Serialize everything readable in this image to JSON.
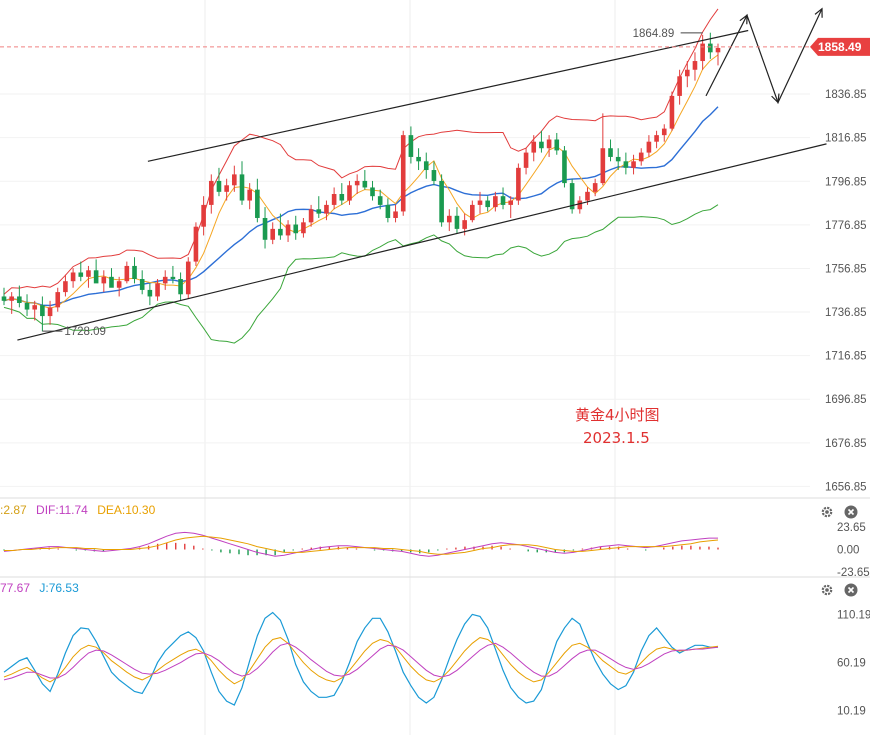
{
  "chart_data": [
    {
      "type": "candlestick",
      "title": "黄金4小时图",
      "subtitle": "2023.1.5",
      "y_ticks": [
        1836.85,
        1816.85,
        1796.85,
        1776.85,
        1756.85,
        1736.85,
        1716.85,
        1696.85,
        1676.85,
        1656.85
      ],
      "ylim": [
        1652,
        1880
      ],
      "current_price": "1858.49",
      "high_marker": "1864.89",
      "low_marker": "1728.09",
      "candles": [
        [
          1744,
          1748,
          1740,
          1742
        ],
        [
          1742,
          1746,
          1736,
          1744
        ],
        [
          1744,
          1749,
          1739,
          1741
        ],
        [
          1741,
          1745,
          1735,
          1738
        ],
        [
          1738,
          1742,
          1733,
          1740
        ],
        [
          1740,
          1744,
          1728,
          1735
        ],
        [
          1735,
          1742,
          1731,
          1739
        ],
        [
          1739,
          1748,
          1737,
          1746
        ],
        [
          1746,
          1754,
          1744,
          1751
        ],
        [
          1751,
          1757,
          1748,
          1755
        ],
        [
          1755,
          1760,
          1751,
          1753
        ],
        [
          1753,
          1758,
          1748,
          1756
        ],
        [
          1756,
          1761,
          1752,
          1750
        ],
        [
          1750,
          1756,
          1746,
          1753
        ],
        [
          1753,
          1757,
          1749,
          1748
        ],
        [
          1748,
          1753,
          1744,
          1751
        ],
        [
          1751,
          1760,
          1750,
          1758
        ],
        [
          1758,
          1762,
          1750,
          1752
        ],
        [
          1752,
          1756,
          1745,
          1747
        ],
        [
          1747,
          1750,
          1740,
          1744
        ],
        [
          1744,
          1752,
          1742,
          1750
        ],
        [
          1750,
          1756,
          1747,
          1753
        ],
        [
          1753,
          1758,
          1750,
          1752
        ],
        [
          1752,
          1755,
          1742,
          1745
        ],
        [
          1745,
          1762,
          1743,
          1760
        ],
        [
          1760,
          1778,
          1758,
          1776
        ],
        [
          1776,
          1790,
          1772,
          1786
        ],
        [
          1786,
          1800,
          1782,
          1797
        ],
        [
          1797,
          1803,
          1790,
          1792
        ],
        [
          1792,
          1798,
          1788,
          1795
        ],
        [
          1795,
          1804,
          1792,
          1800
        ],
        [
          1800,
          1806,
          1786,
          1788
        ],
        [
          1788,
          1796,
          1784,
          1793
        ],
        [
          1793,
          1798,
          1778,
          1780
        ],
        [
          1780,
          1785,
          1766,
          1770
        ],
        [
          1770,
          1778,
          1768,
          1775
        ],
        [
          1775,
          1782,
          1770,
          1772
        ],
        [
          1772,
          1779,
          1769,
          1777
        ],
        [
          1777,
          1781,
          1770,
          1773
        ],
        [
          1773,
          1780,
          1771,
          1778
        ],
        [
          1778,
          1786,
          1776,
          1784
        ],
        [
          1784,
          1790,
          1780,
          1782
        ],
        [
          1782,
          1788,
          1779,
          1786
        ],
        [
          1786,
          1794,
          1784,
          1791
        ],
        [
          1791,
          1796,
          1786,
          1788
        ],
        [
          1788,
          1797,
          1786,
          1795
        ],
        [
          1795,
          1800,
          1791,
          1797
        ],
        [
          1797,
          1802,
          1793,
          1794
        ],
        [
          1794,
          1797,
          1788,
          1790
        ],
        [
          1790,
          1793,
          1784,
          1786
        ],
        [
          1786,
          1789,
          1778,
          1780
        ],
        [
          1780,
          1786,
          1778,
          1783
        ],
        [
          1783,
          1820,
          1781,
          1818
        ],
        [
          1818,
          1822,
          1805,
          1808
        ],
        [
          1808,
          1812,
          1802,
          1806
        ],
        [
          1806,
          1810,
          1798,
          1802
        ],
        [
          1802,
          1806,
          1795,
          1797
        ],
        [
          1797,
          1800,
          1776,
          1778
        ],
        [
          1778,
          1784,
          1774,
          1781
        ],
        [
          1781,
          1785,
          1773,
          1775
        ],
        [
          1775,
          1782,
          1772,
          1779
        ],
        [
          1779,
          1788,
          1778,
          1786
        ],
        [
          1786,
          1792,
          1782,
          1788
        ],
        [
          1788,
          1790,
          1783,
          1785
        ],
        [
          1785,
          1792,
          1783,
          1790
        ],
        [
          1790,
          1794,
          1784,
          1786
        ],
        [
          1786,
          1790,
          1780,
          1788
        ],
        [
          1788,
          1805,
          1786,
          1803
        ],
        [
          1803,
          1812,
          1800,
          1810
        ],
        [
          1810,
          1818,
          1806,
          1815
        ],
        [
          1815,
          1820,
          1810,
          1812
        ],
        [
          1812,
          1818,
          1808,
          1816
        ],
        [
          1816,
          1819,
          1809,
          1811
        ],
        [
          1811,
          1813,
          1794,
          1796
        ],
        [
          1796,
          1798,
          1782,
          1784
        ],
        [
          1784,
          1790,
          1782,
          1788
        ],
        [
          1788,
          1794,
          1786,
          1792
        ],
        [
          1792,
          1798,
          1790,
          1796
        ],
        [
          1796,
          1828,
          1795,
          1812
        ],
        [
          1812,
          1816,
          1806,
          1808
        ],
        [
          1808,
          1812,
          1802,
          1806
        ],
        [
          1806,
          1810,
          1800,
          1803
        ],
        [
          1803,
          1809,
          1800,
          1806
        ],
        [
          1806,
          1812,
          1804,
          1810
        ],
        [
          1810,
          1818,
          1808,
          1815
        ],
        [
          1815,
          1820,
          1812,
          1818
        ],
        [
          1818,
          1823,
          1815,
          1821
        ],
        [
          1821,
          1838,
          1820,
          1836
        ],
        [
          1836,
          1848,
          1832,
          1845
        ],
        [
          1845,
          1852,
          1840,
          1848
        ],
        [
          1848,
          1856,
          1843,
          1852
        ],
        [
          1852,
          1864,
          1848,
          1860
        ],
        [
          1860,
          1865,
          1853,
          1856
        ],
        [
          1856,
          1860,
          1850,
          1858
        ]
      ],
      "upper_channel": [
        [
          0.17,
          1806
        ],
        [
          0.86,
          1866
        ]
      ],
      "lower_channel": [
        [
          0.02,
          1724
        ],
        [
          0.95,
          1814
        ]
      ]
    },
    {
      "type": "macd",
      "labels": [
        ":2.87",
        "DIF:11.74",
        "DEA:10.30"
      ],
      "label_colors": [
        "#d4a017",
        "#c040c0",
        "#e8a000"
      ],
      "y_ticks": [
        "23.65",
        "0.00",
        "-23.65"
      ],
      "ylim": [
        -23.65,
        23.65
      ],
      "dif": [
        -2,
        -1,
        0,
        1,
        2,
        3,
        3,
        2,
        1,
        0,
        -1,
        -2,
        -1,
        0,
        1,
        3,
        6,
        10,
        14,
        17,
        18,
        17,
        15,
        12,
        9,
        6,
        3,
        0,
        -3,
        -5,
        -7,
        -6,
        -4,
        -2,
        0,
        2,
        3,
        4,
        4,
        3,
        2,
        1,
        0,
        -1,
        -2,
        -4,
        -6,
        -7,
        -6,
        -4,
        -2,
        0,
        2,
        4,
        6,
        7,
        6,
        5,
        3,
        1,
        -1,
        -3,
        -4,
        -3,
        -1,
        1,
        3,
        4,
        5,
        4,
        3,
        2,
        3,
        5,
        7,
        9,
        10,
        11,
        12,
        12
      ],
      "dea": [
        -1,
        -1,
        0,
        0,
        1,
        1,
        2,
        2,
        2,
        1,
        1,
        0,
        0,
        0,
        0,
        1,
        2,
        4,
        7,
        10,
        12,
        13,
        14,
        13,
        12,
        10,
        8,
        6,
        3,
        1,
        -1,
        -3,
        -3,
        -3,
        -2,
        -1,
        0,
        1,
        2,
        2,
        2,
        2,
        1,
        1,
        0,
        -1,
        -2,
        -4,
        -5,
        -5,
        -4,
        -3,
        -1,
        1,
        2,
        4,
        5,
        5,
        5,
        4,
        2,
        0,
        -1,
        -2,
        -2,
        -1,
        0,
        1,
        2,
        3,
        3,
        3,
        3,
        3,
        4,
        5,
        6,
        8,
        9,
        10
      ],
      "histogram": [
        -1,
        0,
        0,
        1,
        1,
        2,
        1,
        0,
        -1,
        -1,
        -2,
        -2,
        -1,
        0,
        1,
        2,
        4,
        6,
        7,
        7,
        6,
        4,
        1,
        -1,
        -3,
        -4,
        -5,
        -6,
        -6,
        -6,
        -6,
        -3,
        -1,
        1,
        2,
        3,
        3,
        3,
        2,
        1,
        0,
        -1,
        -1,
        -2,
        -2,
        -3,
        -4,
        -3,
        -1,
        1,
        2,
        3,
        3,
        3,
        4,
        3,
        1,
        0,
        -2,
        -3,
        -3,
        -3,
        -3,
        -1,
        1,
        2,
        3,
        3,
        3,
        1,
        0,
        -1,
        0,
        2,
        3,
        4,
        4,
        3,
        3,
        2
      ]
    },
    {
      "type": "kdj",
      "labels": [
        "77.67",
        "J:76.53"
      ],
      "label_colors": [
        "#c040c0",
        "#1a9ad6"
      ],
      "y_ticks": [
        "110.19",
        "60.19",
        "10.19"
      ],
      "ylim": [
        -10,
        125
      ],
      "k": [
        45,
        48,
        52,
        55,
        50,
        44,
        40,
        45,
        55,
        66,
        74,
        78,
        76,
        70,
        62,
        56,
        50,
        45,
        42,
        46,
        52,
        58,
        63,
        68,
        72,
        74,
        70,
        62,
        52,
        44,
        38,
        42,
        52,
        64,
        76,
        84,
        86,
        80,
        70,
        60,
        52,
        46,
        42,
        40,
        44,
        52,
        62,
        72,
        80,
        84,
        82,
        76,
        66,
        56,
        48,
        42,
        40,
        44,
        52,
        62,
        72,
        80,
        86,
        84,
        78,
        68,
        58,
        50,
        44,
        40,
        42,
        50,
        60,
        70,
        78,
        80,
        76,
        70,
        62,
        56,
        50,
        48,
        52,
        60,
        68,
        74,
        76,
        74,
        72,
        73,
        74,
        75,
        76,
        77
      ],
      "d": [
        42,
        44,
        47,
        50,
        50,
        47,
        44,
        44,
        48,
        55,
        63,
        70,
        73,
        72,
        68,
        63,
        58,
        53,
        49,
        48,
        49,
        52,
        56,
        60,
        65,
        69,
        70,
        67,
        62,
        55,
        49,
        46,
        48,
        54,
        62,
        71,
        78,
        80,
        76,
        70,
        63,
        57,
        51,
        47,
        46,
        48,
        53,
        60,
        67,
        74,
        78,
        77,
        73,
        66,
        59,
        52,
        47,
        45,
        47,
        52,
        59,
        66,
        73,
        78,
        80,
        76,
        70,
        63,
        56,
        50,
        46,
        46,
        50,
        57,
        64,
        70,
        73,
        73,
        69,
        64,
        59,
        55,
        53,
        55,
        59,
        64,
        69,
        72,
        73,
        73,
        74,
        74,
        75,
        76
      ],
      "j": [
        50,
        56,
        62,
        65,
        52,
        38,
        30,
        48,
        70,
        88,
        96,
        95,
        82,
        66,
        50,
        42,
        36,
        30,
        28,
        42,
        60,
        72,
        80,
        88,
        92,
        86,
        72,
        50,
        30,
        20,
        16,
        34,
        62,
        88,
        106,
        112,
        104,
        84,
        58,
        40,
        30,
        24,
        24,
        26,
        40,
        60,
        82,
        96,
        106,
        106,
        92,
        72,
        50,
        36,
        24,
        18,
        24,
        42,
        64,
        84,
        100,
        110,
        108,
        96,
        74,
        52,
        34,
        24,
        18,
        20,
        32,
        58,
        82,
        96,
        106,
        100,
        80,
        62,
        48,
        38,
        32,
        36,
        50,
        72,
        88,
        96,
        86,
        76,
        70,
        74,
        78,
        78,
        76,
        76
      ]
    }
  ],
  "icons": [
    "gear-icon",
    "close-icon"
  ],
  "colors": {
    "bull": "#e23c3c",
    "bear": "#1a9a50",
    "boll_upper": "#e23c3c",
    "boll_mid": "#2d6fd6",
    "boll_lower": "#3aa63a",
    "ma_fast": "#f5a623",
    "price_tag": "#e84040",
    "channel": "#222222"
  }
}
